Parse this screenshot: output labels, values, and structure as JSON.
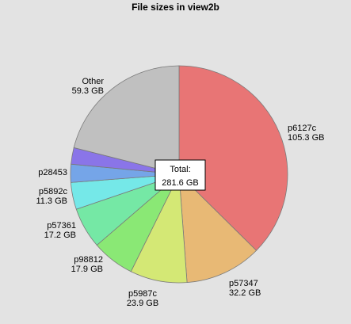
{
  "chart_data": {
    "type": "pie",
    "title": "File sizes in view2b",
    "slices": [
      {
        "name": "p6127c",
        "value": 105.3,
        "value_label": "105.3 GB",
        "color": "#e87575"
      },
      {
        "name": "p57347",
        "value": 32.2,
        "value_label": "32.2 GB",
        "color": "#e8b975"
      },
      {
        "name": "p5987c",
        "value": 23.9,
        "value_label": "23.9 GB",
        "color": "#d4e875"
      },
      {
        "name": "p98812",
        "value": 17.9,
        "value_label": "17.9 GB",
        "color": "#8ae875"
      },
      {
        "name": "p57361",
        "value": 17.2,
        "value_label": "17.2 GB",
        "color": "#75e8a5"
      },
      {
        "name": "p5892c",
        "value": 11.3,
        "value_label": "11.3 GB",
        "color": "#75e8e8"
      },
      {
        "name": "p28453",
        "value": 7.6,
        "value_label": "",
        "color": "#75a5e8"
      },
      {
        "name": "",
        "value": 6.9,
        "value_label": "",
        "color": "#8a75e8"
      },
      {
        "name": "Other",
        "value": 59.3,
        "value_label": "59.3 GB",
        "color": "#c0c0c0"
      }
    ],
    "tooltip": {
      "title": "Total:",
      "value": "281.6 GB"
    }
  }
}
